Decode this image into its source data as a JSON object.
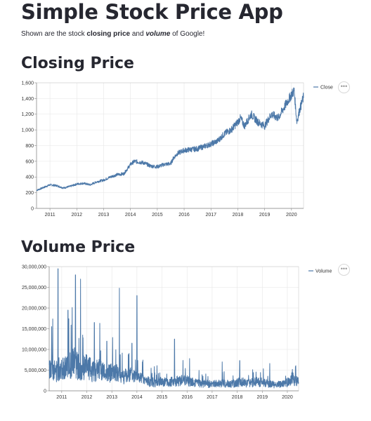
{
  "app": {
    "title": "Simple Stock Price App",
    "description": {
      "pre": "Shown are the stock ",
      "bold": "closing price",
      "mid": " and ",
      "bold_italic": "volume",
      "post": " of Google!"
    }
  },
  "sections": [
    {
      "heading": "Closing Price",
      "menu_icon": "ellipsis-icon"
    },
    {
      "heading": "Volume Price",
      "menu_icon": "ellipsis-icon"
    }
  ],
  "chart_data": [
    {
      "type": "line",
      "series": [
        {
          "name": "Close"
        }
      ],
      "color": "#4c78a8",
      "y_ticks": [
        "0",
        "200",
        "400",
        "600",
        "800",
        "1,000",
        "1,200",
        "1,400",
        "1,600"
      ],
      "x_ticks": [
        "2011",
        "2012",
        "2013",
        "2014",
        "2015",
        "2016",
        "2017",
        "2018",
        "2019",
        "2020"
      ],
      "ylim": [
        0,
        1600
      ],
      "xlim": [
        2010.5,
        2020.45
      ],
      "grid": true,
      "legend": "top-right",
      "x": [
        2010.5,
        2010.75,
        2011.0,
        2011.25,
        2011.5,
        2011.75,
        2012.0,
        2012.25,
        2012.5,
        2012.75,
        2013.0,
        2013.25,
        2013.5,
        2013.75,
        2014.0,
        2014.15,
        2014.5,
        2014.75,
        2015.0,
        2015.25,
        2015.5,
        2015.6,
        2015.75,
        2016.0,
        2016.25,
        2016.5,
        2016.75,
        2017.0,
        2017.25,
        2017.5,
        2017.75,
        2018.0,
        2018.1,
        2018.25,
        2018.5,
        2018.75,
        2019.0,
        2019.25,
        2019.5,
        2019.75,
        2020.0,
        2020.1,
        2020.2,
        2020.3,
        2020.45
      ],
      "values": [
        230,
        265,
        300,
        290,
        260,
        280,
        310,
        320,
        300,
        340,
        360,
        400,
        430,
        440,
        560,
        600,
        580,
        540,
        530,
        560,
        570,
        640,
        700,
        740,
        750,
        760,
        790,
        820,
        860,
        950,
        1000,
        1100,
        1150,
        1050,
        1200,
        1100,
        1050,
        1200,
        1150,
        1300,
        1450,
        1500,
        1100,
        1250,
        1420
      ]
    },
    {
      "type": "line",
      "series": [
        {
          "name": "Volume"
        }
      ],
      "color": "#4c78a8",
      "y_ticks": [
        "0",
        "5,000,000",
        "10,000,000",
        "15,000,000",
        "20,000,000",
        "25,000,000",
        "30,000,000"
      ],
      "x_ticks": [
        "2011",
        "2012",
        "2013",
        "2014",
        "2015",
        "2016",
        "2017",
        "2018",
        "2019",
        "2020"
      ],
      "ylim": [
        0,
        30000000
      ],
      "xlim": [
        2010.5,
        2020.45
      ],
      "grid": true,
      "legend": "top-right",
      "x": [
        2010.5,
        2010.6,
        2010.75,
        2011.0,
        2011.25,
        2011.5,
        2011.75,
        2012.0,
        2012.25,
        2012.5,
        2012.75,
        2013.0,
        2013.25,
        2013.5,
        2013.75,
        2014.0,
        2014.25,
        2014.5,
        2014.75,
        2015.0,
        2015.25,
        2015.5,
        2015.75,
        2016.0,
        2016.25,
        2016.5,
        2016.75,
        2017.0,
        2017.25,
        2017.5,
        2017.75,
        2018.0,
        2018.25,
        2018.5,
        2018.75,
        2019.0,
        2019.25,
        2019.5,
        2019.75,
        2020.0,
        2020.2,
        2020.45
      ],
      "values": [
        5000000,
        6500000,
        4500000,
        6000000,
        5500000,
        7000000,
        5000000,
        6000000,
        4500000,
        5500000,
        4000000,
        4500000,
        4000000,
        3500000,
        3800000,
        3500000,
        2500000,
        2200000,
        2000000,
        2200000,
        2000000,
        2300000,
        2500000,
        2400000,
        2000000,
        1800000,
        1700000,
        1600000,
        1700000,
        1800000,
        1600000,
        2000000,
        2100000,
        1800000,
        2200000,
        2000000,
        1700000,
        1500000,
        1500000,
        2000000,
        3000000,
        2000000
      ],
      "spikes": [
        {
          "x": 2010.6,
          "y": 15500000
        },
        {
          "x": 2010.85,
          "y": 29500000
        },
        {
          "x": 2011.25,
          "y": 19500000
        },
        {
          "x": 2011.55,
          "y": 28000000
        },
        {
          "x": 2011.75,
          "y": 27000000
        },
        {
          "x": 2012.3,
          "y": 16500000
        },
        {
          "x": 2012.8,
          "y": 12000000
        },
        {
          "x": 2013.3,
          "y": 24800000
        },
        {
          "x": 2013.8,
          "y": 11500000
        },
        {
          "x": 2014.0,
          "y": 23000000
        },
        {
          "x": 2015.5,
          "y": 12500000
        },
        {
          "x": 2016.1,
          "y": 7800000
        },
        {
          "x": 2017.4,
          "y": 7000000
        },
        {
          "x": 2018.1,
          "y": 7300000
        },
        {
          "x": 2019.3,
          "y": 6600000
        },
        {
          "x": 2020.2,
          "y": 5200000
        }
      ]
    }
  ]
}
